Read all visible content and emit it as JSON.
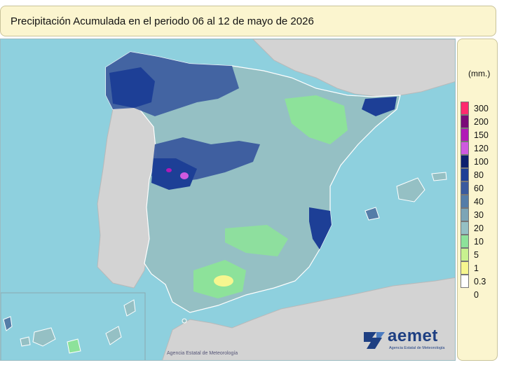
{
  "title": "Precipitación Acumulada en el periodo 06 al 12 de mayo de 2026",
  "legend": {
    "unit": "(mm.)",
    "items": [
      {
        "label": "300",
        "color": "#ff2a6e"
      },
      {
        "label": "200",
        "color": "#7a0a78"
      },
      {
        "label": "150",
        "color": "#b11ab6"
      },
      {
        "label": "120",
        "color": "#cf5ae0"
      },
      {
        "label": "100",
        "color": "#0d1f6e"
      },
      {
        "label": "80",
        "color": "#1d3f96"
      },
      {
        "label": "60",
        "color": "#3a5a9e"
      },
      {
        "label": "40",
        "color": "#557da8"
      },
      {
        "label": "30",
        "color": "#7ca5b6"
      },
      {
        "label": "20",
        "color": "#95c0c4"
      },
      {
        "label": "10",
        "color": "#8de29a"
      },
      {
        "label": "5",
        "color": "#c8f28f"
      },
      {
        "label": "1",
        "color": "#f6f68f"
      },
      {
        "label": "0.3",
        "color": "#ffffff"
      },
      {
        "label": "0",
        "color": ""
      }
    ]
  },
  "credit": "Agencia Estatal de Meteorología",
  "logo": {
    "name": "aemet",
    "subtitle": "Agencia Estatal de Meteorología",
    "color": "#1e3f82"
  },
  "colors": {
    "sea": "#8ed0de",
    "land_neighbor": "#d3d3d3",
    "base_precip": "#95c0c4"
  }
}
